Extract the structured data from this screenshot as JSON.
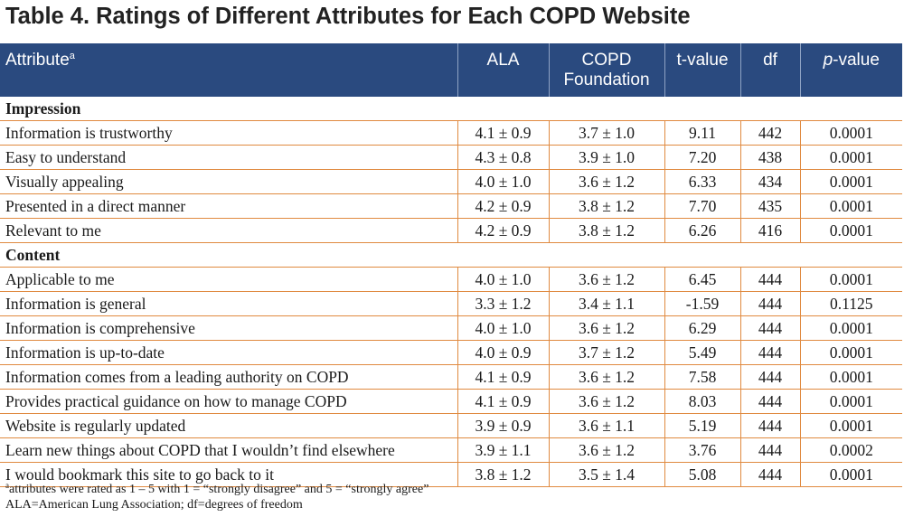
{
  "title": "Table 4.  Ratings of Different Attributes for Each COPD Website",
  "header": {
    "attribute": "Attribute",
    "attribute_sup": "a",
    "ala": "ALA",
    "copd_line1": "COPD",
    "copd_line2": "Foundation",
    "tvalue": "t-value",
    "df": "df",
    "p_italic": "p",
    "p_rest": "-value"
  },
  "sections": [
    {
      "name": "Impression",
      "rows": [
        [
          "Information is trustworthy",
          "4.1 ± 0.9",
          "3.7 ± 1.0",
          "9.11",
          "442",
          "0.0001"
        ],
        [
          "Easy to understand",
          "4.3 ± 0.8",
          "3.9 ± 1.0",
          "7.20",
          "438",
          "0.0001"
        ],
        [
          "Visually appealing",
          "4.0 ± 1.0",
          "3.6 ± 1.2",
          "6.33",
          "434",
          "0.0001"
        ],
        [
          "Presented in a direct manner",
          "4.2 ± 0.9",
          "3.8 ± 1.2",
          "7.70",
          "435",
          "0.0001"
        ],
        [
          "Relevant to me",
          "4.2 ± 0.9",
          "3.8 ± 1.2",
          "6.26",
          "416",
          "0.0001"
        ]
      ]
    },
    {
      "name": "Content",
      "rows": [
        [
          "Applicable to me",
          "4.0 ± 1.0",
          "3.6 ± 1.2",
          "6.45",
          "444",
          "0.0001"
        ],
        [
          "Information is general",
          "3.3 ± 1.2",
          "3.4 ± 1.1",
          "-1.59",
          "444",
          "0.1125"
        ],
        [
          "Information is comprehensive",
          "4.0 ± 1.0",
          "3.6 ± 1.2",
          "6.29",
          "444",
          "0.0001"
        ],
        [
          "Information is up-to-date",
          "4.0 ± 0.9",
          "3.7 ± 1.2",
          "5.49",
          "444",
          "0.0001"
        ],
        [
          "Information comes from a leading authority on COPD",
          "4.1 ± 0.9",
          "3.6 ± 1.2",
          "7.58",
          "444",
          "0.0001"
        ],
        [
          "Provides practical guidance on how to manage COPD",
          "4.1 ± 0.9",
          "3.6 ± 1.2",
          "8.03",
          "444",
          "0.0001"
        ],
        [
          "Website is regularly updated",
          "3.9 ± 0.9",
          "3.6 ± 1.1",
          "5.19",
          "444",
          "0.0001"
        ],
        [
          "Learn new things about COPD that I wouldn’t find elsewhere",
          "3.9 ± 1.1",
          "3.6 ± 1.2",
          "3.76",
          "444",
          "0.0002"
        ],
        [
          "I would bookmark this site to go back to it",
          "3.8 ± 1.2",
          "3.5 ± 1.4",
          "5.08",
          "444",
          "0.0001"
        ]
      ]
    }
  ],
  "footnotes": {
    "note1_sup": "a",
    "note1": "attributes were rated as 1 – 5 with 1 = “strongly disagree” and 5 = “strongly agree”",
    "note2": "ALA=American Lung Association; df=degrees of freedom"
  },
  "colors": {
    "header_bg": "#2a4a7f",
    "rule": "#e08a40"
  }
}
